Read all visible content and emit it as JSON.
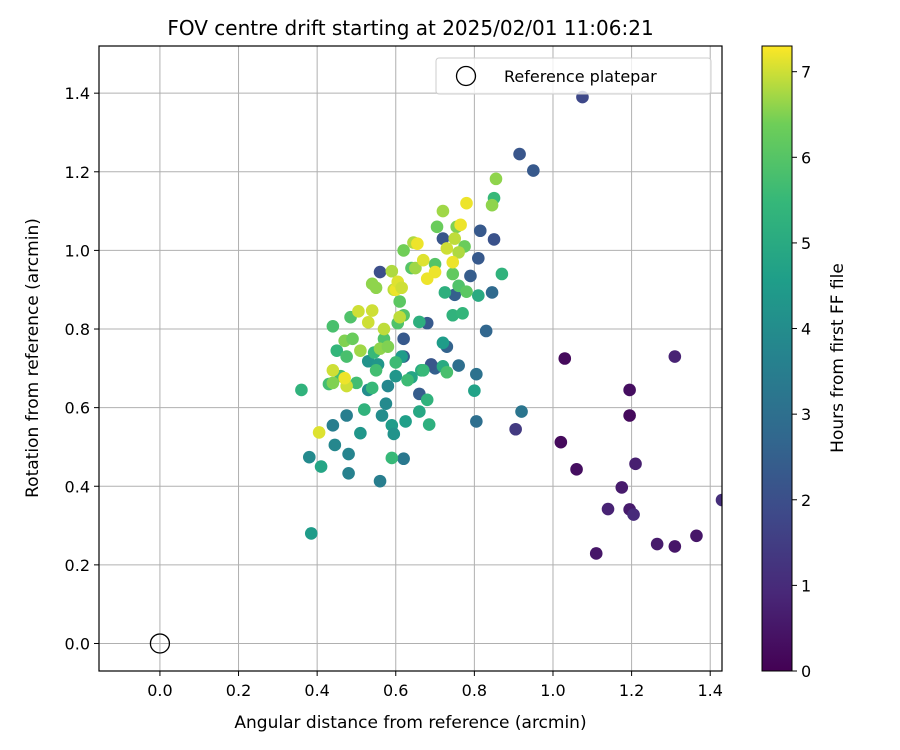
{
  "chart_data": {
    "type": "scatter",
    "title": "FOV centre drift starting at 2025/02/01 11:06:21",
    "xlabel": "Angular distance from reference (arcmin)",
    "ylabel": "Rotation from reference (arcmin)",
    "xlim": [
      -0.155,
      1.43
    ],
    "ylim": [
      -0.07,
      1.52
    ],
    "xticks": [
      0.0,
      0.2,
      0.4,
      0.6,
      0.8,
      1.0,
      1.2,
      1.4
    ],
    "xtick_labels": [
      "0.0",
      "0.2",
      "0.4",
      "0.6",
      "0.8",
      "1.0",
      "1.2",
      "1.4"
    ],
    "yticks": [
      0.0,
      0.2,
      0.4,
      0.6,
      0.8,
      1.0,
      1.2,
      1.4
    ],
    "ytick_labels": [
      "0.0",
      "0.2",
      "0.4",
      "0.6",
      "0.8",
      "1.0",
      "1.2",
      "1.4"
    ],
    "grid": true,
    "legend_position": "top-right",
    "legend_entries": [
      "Reference platepar"
    ],
    "reference_point": {
      "x": 0.0,
      "y": 0.0,
      "marker": "open-circle"
    },
    "colormap": "viridis",
    "colorbar": {
      "label": "Hours from first FF file",
      "range": [
        0,
        7.3
      ],
      "ticks": [
        0,
        1,
        2,
        3,
        4,
        5,
        6,
        7
      ],
      "tick_labels": [
        "0",
        "1",
        "2",
        "3",
        "4",
        "5",
        "6",
        "7"
      ]
    },
    "points": [
      [
        1.03,
        0.725,
        0.2
      ],
      [
        1.31,
        0.73,
        0.8
      ],
      [
        1.195,
        0.645,
        0.3
      ],
      [
        1.195,
        0.58,
        0.2
      ],
      [
        1.02,
        0.512,
        0.2
      ],
      [
        1.06,
        0.443,
        0.3
      ],
      [
        1.21,
        0.457,
        0.7
      ],
      [
        1.175,
        0.397,
        0.6
      ],
      [
        1.14,
        0.342,
        0.8
      ],
      [
        1.195,
        0.341,
        0.6
      ],
      [
        1.205,
        0.328,
        1.0
      ],
      [
        1.11,
        0.229,
        0.5
      ],
      [
        1.265,
        0.253,
        0.6
      ],
      [
        1.31,
        0.247,
        0.5
      ],
      [
        1.365,
        0.274,
        0.5
      ],
      [
        1.43,
        0.365,
        1.1
      ],
      [
        0.905,
        0.545,
        1.4
      ],
      [
        1.075,
        1.39,
        1.8
      ],
      [
        0.915,
        1.245,
        2.2
      ],
      [
        0.95,
        1.203,
        2.3
      ],
      [
        0.85,
        1.028,
        2.1
      ],
      [
        0.815,
        1.05,
        2.3
      ],
      [
        0.81,
        0.98,
        2.3
      ],
      [
        0.79,
        0.935,
        2.4
      ],
      [
        0.845,
        0.893,
        2.8
      ],
      [
        0.75,
        0.887,
        2.5
      ],
      [
        0.83,
        0.795,
        2.7
      ],
      [
        0.72,
        1.03,
        2.2
      ],
      [
        0.7,
        0.7,
        2.5
      ],
      [
        0.68,
        0.815,
        2.3
      ],
      [
        0.62,
        0.775,
        2.3
      ],
      [
        0.56,
        0.945,
        2.0
      ],
      [
        0.62,
        0.73,
        2.4
      ],
      [
        0.66,
        0.635,
        2.4
      ],
      [
        0.69,
        0.71,
        2.2
      ],
      [
        0.73,
        0.755,
        2.6
      ],
      [
        0.76,
        0.707,
        3.0
      ],
      [
        0.805,
        0.685,
        3.1
      ],
      [
        0.805,
        0.565,
        3.0
      ],
      [
        0.92,
        0.59,
        3.2
      ],
      [
        0.62,
        0.47,
        3.3
      ],
      [
        0.56,
        0.413,
        3.5
      ],
      [
        0.48,
        0.433,
        3.6
      ],
      [
        0.38,
        0.474,
        3.9
      ],
      [
        0.385,
        0.28,
        4.5
      ],
      [
        0.41,
        0.45,
        4.8
      ],
      [
        0.44,
        0.555,
        3.5
      ],
      [
        0.445,
        0.505,
        3.8
      ],
      [
        0.475,
        0.58,
        3.5
      ],
      [
        0.48,
        0.482,
        3.7
      ],
      [
        0.51,
        0.535,
        4.3
      ],
      [
        0.53,
        0.645,
        4.0
      ],
      [
        0.53,
        0.718,
        4.2
      ],
      [
        0.555,
        0.71,
        4.3
      ],
      [
        0.565,
        0.58,
        4.0
      ],
      [
        0.575,
        0.61,
        3.9
      ],
      [
        0.58,
        0.655,
        3.8
      ],
      [
        0.59,
        0.555,
        4.5
      ],
      [
        0.595,
        0.533,
        4.2
      ],
      [
        0.6,
        0.68,
        4.3
      ],
      [
        0.615,
        0.73,
        4.5
      ],
      [
        0.625,
        0.565,
        4.6
      ],
      [
        0.64,
        0.677,
        4.8
      ],
      [
        0.66,
        0.59,
        4.9
      ],
      [
        0.66,
        0.818,
        5.2
      ],
      [
        0.665,
        0.695,
        5.0
      ],
      [
        0.68,
        0.62,
        5.3
      ],
      [
        0.685,
        0.557,
        5.2
      ],
      [
        0.72,
        0.765,
        4.5
      ],
      [
        0.72,
        0.705,
        5.0
      ],
      [
        0.725,
        0.893,
        5.2
      ],
      [
        0.745,
        0.835,
        5.3
      ],
      [
        0.77,
        0.84,
        5.4
      ],
      [
        0.8,
        0.643,
        4.7
      ],
      [
        0.81,
        0.885,
        5.0
      ],
      [
        0.85,
        1.133,
        5.5
      ],
      [
        0.87,
        0.94,
        5.3
      ],
      [
        0.36,
        0.645,
        5.3
      ],
      [
        0.43,
        0.66,
        5.7
      ],
      [
        0.44,
        0.807,
        5.8
      ],
      [
        0.45,
        0.745,
        5.4
      ],
      [
        0.46,
        0.68,
        5.7
      ],
      [
        0.475,
        0.73,
        5.8
      ],
      [
        0.485,
        0.83,
        5.9
      ],
      [
        0.5,
        0.663,
        5.7
      ],
      [
        0.52,
        0.595,
        5.3
      ],
      [
        0.54,
        0.65,
        5.5
      ],
      [
        0.545,
        0.74,
        5.5
      ],
      [
        0.55,
        0.695,
        5.7
      ],
      [
        0.57,
        0.775,
        5.9
      ],
      [
        0.59,
        0.472,
        5.5
      ],
      [
        0.6,
        0.715,
        5.6
      ],
      [
        0.605,
        0.815,
        5.9
      ],
      [
        0.61,
        0.87,
        6.1
      ],
      [
        0.62,
        0.835,
        6.0
      ],
      [
        0.63,
        0.67,
        5.6
      ],
      [
        0.64,
        0.955,
        6.0
      ],
      [
        0.67,
        0.695,
        5.5
      ],
      [
        0.7,
        0.965,
        6.0
      ],
      [
        0.73,
        0.69,
        5.8
      ],
      [
        0.745,
        0.94,
        6.2
      ],
      [
        0.76,
        0.91,
        5.9
      ],
      [
        0.78,
        0.895,
        6.1
      ],
      [
        0.775,
        1.01,
        6.3
      ],
      [
        0.755,
        1.06,
        6.5
      ],
      [
        0.705,
        1.06,
        6.3
      ],
      [
        0.72,
        1.1,
        6.7
      ],
      [
        0.645,
        1.02,
        6.8
      ],
      [
        0.65,
        0.955,
        6.7
      ],
      [
        0.59,
        0.947,
        6.8
      ],
      [
        0.595,
        0.9,
        6.9
      ],
      [
        0.54,
        0.915,
        6.6
      ],
      [
        0.55,
        0.905,
        6.6
      ],
      [
        0.505,
        0.845,
        7.0
      ],
      [
        0.53,
        0.817,
        7.0
      ],
      [
        0.54,
        0.847,
        7.0
      ],
      [
        0.57,
        0.8,
        6.9
      ],
      [
        0.56,
        0.75,
        6.6
      ],
      [
        0.58,
        0.755,
        6.5
      ],
      [
        0.61,
        0.83,
        6.9
      ],
      [
        0.62,
        1.0,
        6.4
      ],
      [
        0.44,
        0.663,
        6.5
      ],
      [
        0.47,
        0.77,
        6.5
      ],
      [
        0.49,
        0.775,
        6.3
      ],
      [
        0.475,
        0.655,
        7.0
      ],
      [
        0.47,
        0.675,
        7.2
      ],
      [
        0.44,
        0.695,
        7.0
      ],
      [
        0.405,
        0.537,
        7.1
      ],
      [
        0.51,
        0.745,
        6.7
      ],
      [
        0.67,
        0.975,
        7.1
      ],
      [
        0.7,
        0.945,
        7.2
      ],
      [
        0.68,
        0.928,
        7.2
      ],
      [
        0.655,
        1.017,
        7.2
      ],
      [
        0.73,
        1.005,
        7.0
      ],
      [
        0.76,
        0.995,
        6.8
      ],
      [
        0.745,
        0.97,
        7.2
      ],
      [
        0.75,
        1.03,
        6.9
      ],
      [
        0.765,
        1.065,
        7.2
      ],
      [
        0.78,
        1.12,
        7.2
      ],
      [
        0.845,
        1.115,
        6.6
      ],
      [
        0.855,
        1.182,
        6.6
      ],
      [
        0.6,
        0.9,
        7.2
      ],
      [
        0.605,
        0.92,
        7.1
      ],
      [
        0.615,
        0.905,
        7.0
      ]
    ]
  }
}
